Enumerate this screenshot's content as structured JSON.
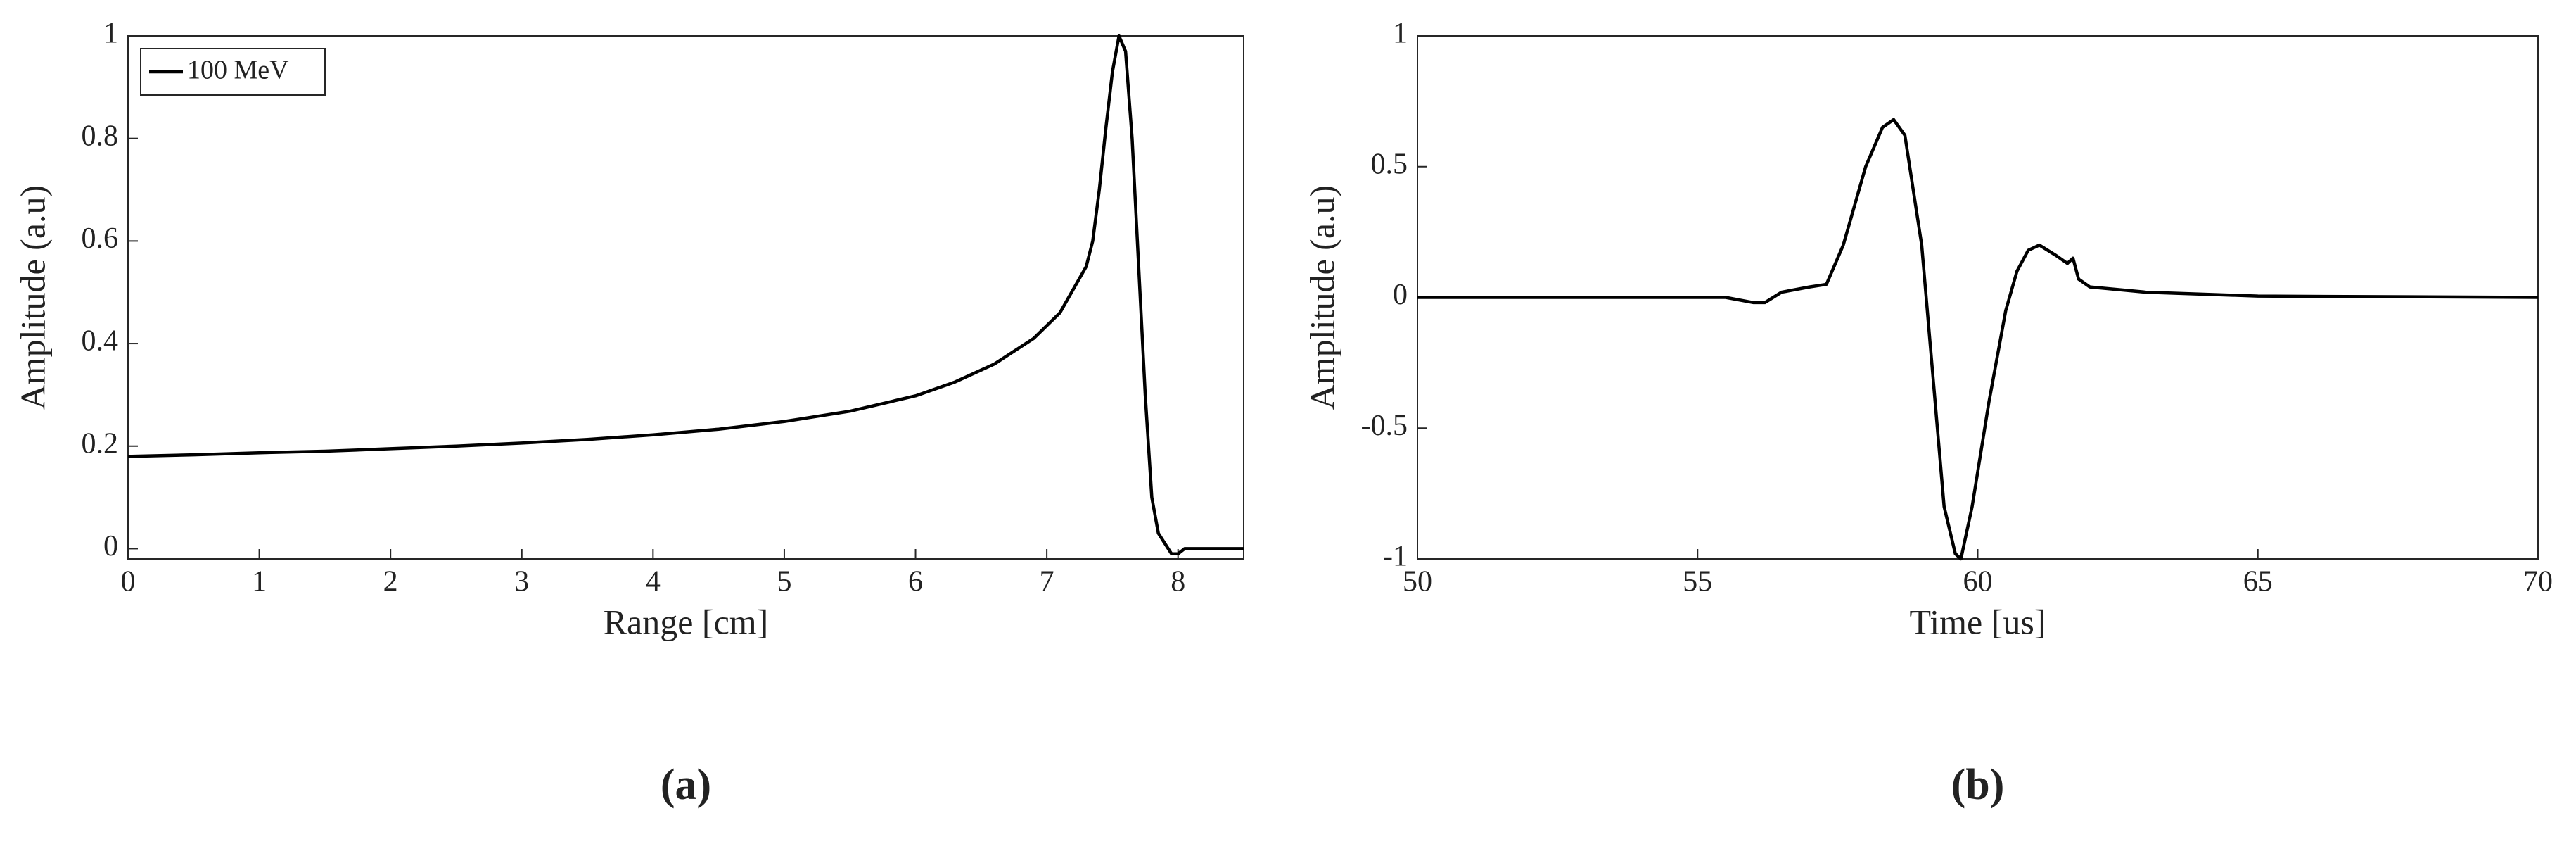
{
  "chart_data": [
    {
      "type": "line",
      "xlabel": "Range [cm]",
      "ylabel": "Amplitude (a.u)",
      "caption": "(a)",
      "x": [
        0,
        0.5,
        1,
        1.5,
        2,
        2.5,
        3,
        3.5,
        4,
        4.5,
        5,
        5.5,
        6,
        6.3,
        6.6,
        6.9,
        7.1,
        7.3,
        7.35,
        7.4,
        7.45,
        7.5,
        7.55,
        7.6,
        7.65,
        7.7,
        7.75,
        7.8,
        7.85,
        7.9,
        7.95,
        8.0,
        8.05,
        8.1,
        8.5
      ],
      "series": [
        {
          "name": "100 MeV",
          "color": "#000000",
          "values": [
            0.18,
            0.183,
            0.187,
            0.19,
            0.195,
            0.2,
            0.206,
            0.213,
            0.222,
            0.233,
            0.248,
            0.268,
            0.298,
            0.325,
            0.36,
            0.41,
            0.46,
            0.55,
            0.6,
            0.7,
            0.82,
            0.93,
            1.0,
            0.97,
            0.8,
            0.55,
            0.3,
            0.1,
            0.03,
            0.01,
            -0.01,
            -0.01,
            0.0,
            0.0,
            0.0
          ]
        }
      ],
      "xlim": [
        0,
        8.5
      ],
      "ylim": [
        -0.02,
        1
      ],
      "xticks": [
        0,
        1,
        2,
        3,
        4,
        5,
        6,
        7,
        8
      ],
      "yticks": [
        0,
        0.2,
        0.4,
        0.6,
        0.8,
        1
      ],
      "legend": "upper left"
    },
    {
      "type": "line",
      "xlabel": "Time [us]",
      "ylabel": "Amplitude (a.u)",
      "caption": "(b)",
      "x": [
        50,
        55.5,
        56,
        56.2,
        56.5,
        57,
        57.3,
        57.6,
        58,
        58.3,
        58.5,
        58.7,
        59,
        59.2,
        59.4,
        59.6,
        59.7,
        59.9,
        60.2,
        60.5,
        60.7,
        60.9,
        61.1,
        61.4,
        61.6,
        61.7,
        61.8,
        62,
        63,
        65,
        70
      ],
      "series": [
        {
          "color": "#000000",
          "values": [
            0,
            0,
            -0.02,
            -0.02,
            0.02,
            0.04,
            0.05,
            0.2,
            0.5,
            0.65,
            0.68,
            0.62,
            0.2,
            -0.3,
            -0.8,
            -0.98,
            -1.0,
            -0.8,
            -0.4,
            -0.05,
            0.1,
            0.18,
            0.2,
            0.16,
            0.13,
            0.15,
            0.07,
            0.04,
            0.02,
            0.005,
            0
          ]
        }
      ],
      "xlim": [
        50,
        70
      ],
      "ylim": [
        -1,
        1
      ],
      "xticks": [
        50,
        55,
        60,
        65,
        70
      ],
      "yticks": [
        -1,
        -0.5,
        0,
        0.5,
        1
      ]
    }
  ]
}
